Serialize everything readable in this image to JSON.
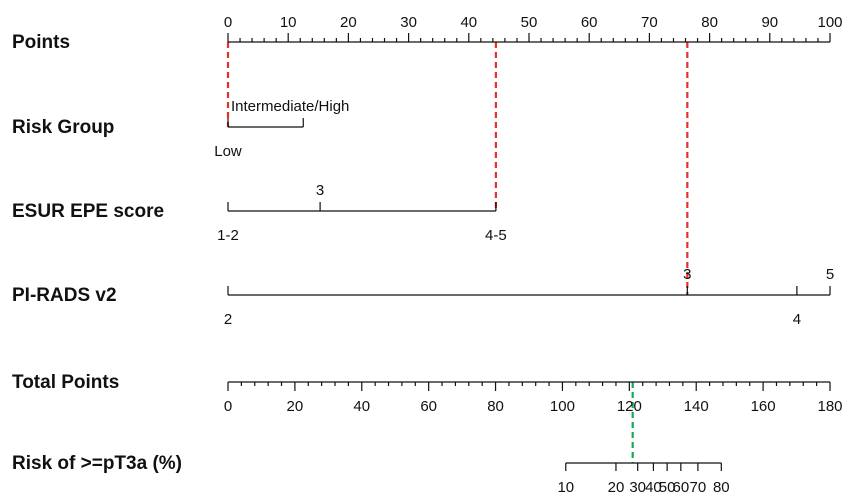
{
  "chart_data": {
    "type": "nomogram",
    "rows": [
      {
        "id": "points",
        "label": "Points",
        "min": 0,
        "max": 100,
        "major_ticks": [
          0,
          10,
          20,
          30,
          40,
          50,
          60,
          70,
          80,
          90,
          100
        ],
        "minor_step": 2,
        "labels_above": true
      },
      {
        "id": "risk-group",
        "label": "Risk Group",
        "categories": [
          {
            "label": "Low",
            "points": 0,
            "side": "below"
          },
          {
            "label": "Intermediate/High",
            "points": 12.5,
            "side": "above"
          }
        ]
      },
      {
        "id": "esur-epe",
        "label": "ESUR EPE score",
        "categories": [
          {
            "label": "1-2",
            "points": 0,
            "side": "below"
          },
          {
            "label": "3",
            "points": 15.3,
            "side": "above"
          },
          {
            "label": "4-5",
            "points": 44.5,
            "side": "below"
          }
        ]
      },
      {
        "id": "pirads",
        "label": "PI-RADS v2",
        "categories": [
          {
            "label": "2",
            "points": 0,
            "side": "below"
          },
          {
            "label": "3",
            "points": 76.3,
            "side": "above"
          },
          {
            "label": "4",
            "points": 94.5,
            "side": "below"
          },
          {
            "label": "5",
            "points": 100,
            "side": "above"
          }
        ]
      },
      {
        "id": "total-points",
        "label": "Total Points",
        "min": 0,
        "max": 180,
        "major_ticks": [
          0,
          20,
          40,
          60,
          80,
          100,
          120,
          140,
          160,
          180
        ],
        "minor_step": 4,
        "labels_above": false
      },
      {
        "id": "risk",
        "label": "Risk of >=pT3a (%)",
        "ticks": [
          {
            "label": "10",
            "total": 101
          },
          {
            "label": "20",
            "total": 116
          },
          {
            "label": "30",
            "total": 122.5
          },
          {
            "label": "40",
            "total": 127.2
          },
          {
            "label": "50",
            "total": 131.3
          },
          {
            "label": "60",
            "total": 135.4
          },
          {
            "label": "70",
            "total": 140.5
          },
          {
            "label": "80",
            "total": 147.5
          }
        ]
      }
    ],
    "red_guides_points": [
      0,
      44.5,
      76.3
    ],
    "green_guide_total": 121,
    "colors": {
      "red_guide": "#e8302a",
      "green_guide": "#19a955",
      "axis": "#111111"
    }
  }
}
